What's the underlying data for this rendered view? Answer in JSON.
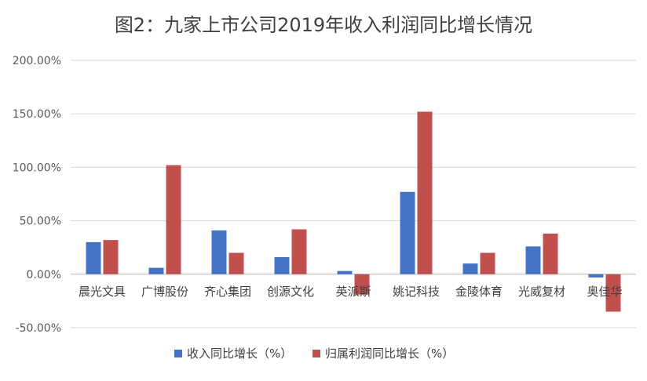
{
  "chart_data": {
    "type": "bar",
    "title": "图2：九家上市公司2019年收入利润同比增长情况",
    "categories": [
      "晨光文具",
      "广博股份",
      "齐心集团",
      "创源文化",
      "英派斯",
      "姚记科技",
      "金陵体育",
      "光威复材",
      "奥佳华"
    ],
    "series": [
      {
        "name": "收入同比增长（%）",
        "color": "#4472C4",
        "values": [
          30,
          6,
          41,
          16,
          3,
          77,
          10,
          26,
          -3
        ]
      },
      {
        "name": "归属利润同比增长（%）",
        "color": "#C0504D",
        "values": [
          32,
          102,
          20,
          42,
          -19,
          152,
          20,
          38,
          -35
        ]
      }
    ],
    "ylim": [
      -50,
      200
    ],
    "yticks": [
      "200.00%",
      "150.00%",
      "100.00%",
      "50.00%",
      "0.00%",
      "-50.00%"
    ],
    "ytick_values": [
      200,
      150,
      100,
      50,
      0,
      -50
    ],
    "grid": true,
    "legend_position": "bottom"
  }
}
